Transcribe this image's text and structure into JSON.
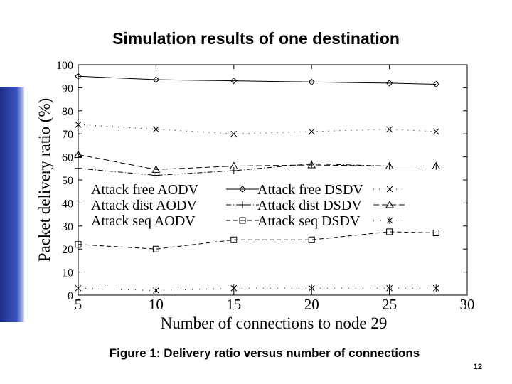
{
  "chart_data": {
    "type": "line",
    "title": "Simulation results of one destination",
    "x_label": "Number of connections to node 29",
    "y_label": "Packet delivery ratio (%)",
    "x": [
      5,
      10,
      15,
      20,
      25,
      28
    ],
    "xlim": [
      5,
      30
    ],
    "xticks": [
      5,
      10,
      15,
      20,
      25,
      30
    ],
    "ylim": [
      0,
      100
    ],
    "yticks": [
      0,
      10,
      20,
      30,
      40,
      50,
      60,
      70,
      80,
      90,
      100
    ],
    "series": [
      {
        "name": "Attack free AODV",
        "color": "#000000",
        "marker": "diamond",
        "dash": "none",
        "values": [
          95,
          93.5,
          93,
          92.5,
          92,
          91.5
        ]
      },
      {
        "name": "Attack dist AODV",
        "color": "#000000",
        "marker": "plus",
        "dash": "7,3,1,3",
        "values": [
          55,
          52,
          54,
          57,
          56,
          56
        ]
      },
      {
        "name": "Attack seq AODV",
        "color": "#000000",
        "marker": "square",
        "dash": "6,4",
        "values": [
          22,
          20,
          24,
          24,
          27.5,
          27
        ]
      },
      {
        "name": "Attack free DSDV",
        "color": "#000000",
        "marker": "x",
        "dash": "1,7",
        "values": [
          74,
          72,
          70,
          71,
          72,
          71
        ]
      },
      {
        "name": "Attack dist DSDV",
        "color": "#000000",
        "marker": "triangle",
        "dash": "8,4",
        "values": [
          61,
          54.5,
          56,
          56.5,
          56,
          56
        ]
      },
      {
        "name": "Attack seq DSDV",
        "color": "#000000",
        "marker": "asterisk",
        "dash": "1,9",
        "values": [
          3,
          2,
          3,
          3,
          3,
          3
        ]
      }
    ]
  },
  "caption": "Figure 1: Delivery ratio versus number of connections",
  "page_number": "12"
}
